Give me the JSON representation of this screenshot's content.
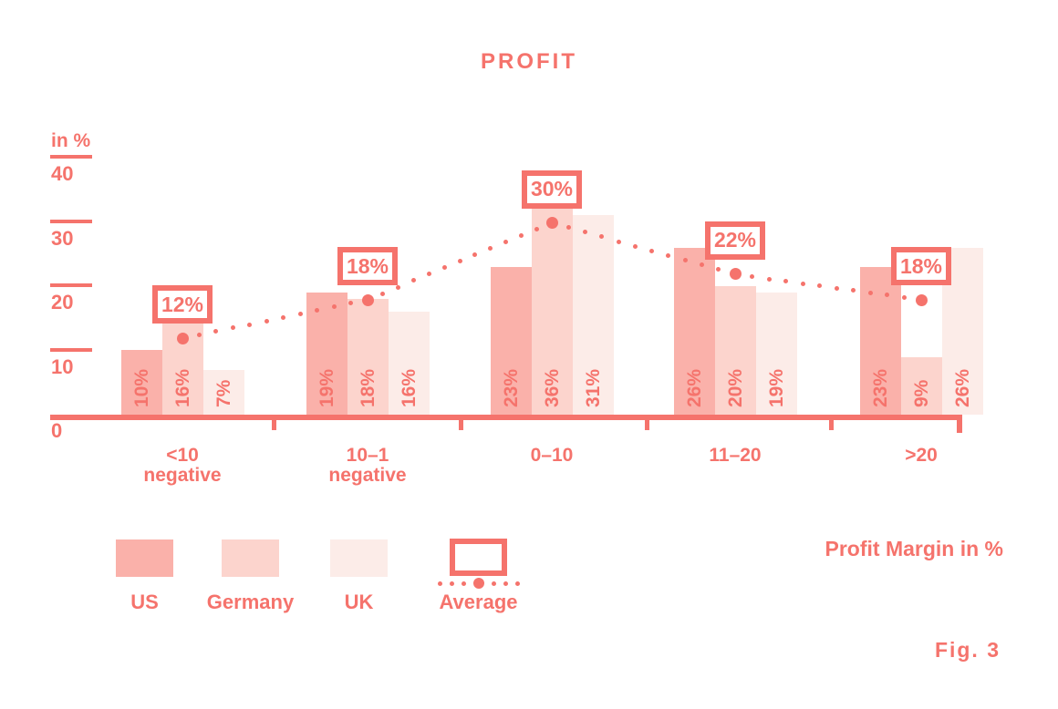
{
  "title": "PROFIT",
  "y_axis_unit": "in %",
  "x_axis_title": "Profit Margin in %",
  "figure_label": "Fig. 3",
  "colors": {
    "accent": "#F5736C",
    "us": "#FAB1AA",
    "germany": "#FCD4CD",
    "uk": "#FCECE8",
    "background": "#FFFFFF"
  },
  "legend": [
    {
      "name": "US",
      "type": "swatch",
      "color": "#FAB1AA"
    },
    {
      "name": "Germany",
      "type": "swatch",
      "color": "#FCD4CD"
    },
    {
      "name": "UK",
      "type": "swatch",
      "color": "#FCECE8"
    },
    {
      "name": "Average",
      "type": "outlined-box-with-dotted-line"
    }
  ],
  "chart_data": {
    "type": "bar",
    "title": "PROFIT",
    "xlabel": "Profit Margin in %",
    "ylabel": "in %",
    "ylim": [
      0,
      40
    ],
    "yticks": [
      40,
      30,
      20,
      10,
      0
    ],
    "grid": false,
    "legend_position": "bottom-left",
    "categories": [
      "<10 negative",
      "10–1 negative",
      "0–10",
      "11–20",
      ">20"
    ],
    "category_lines": [
      [
        "<10",
        "negative"
      ],
      [
        "10–1",
        "negative"
      ],
      [
        "0–10"
      ],
      [
        "11–20"
      ],
      [
        ">20"
      ]
    ],
    "series": [
      {
        "name": "US",
        "color": "#FAB1AA",
        "values": [
          10,
          19,
          23,
          26,
          23
        ],
        "labels": [
          "10%",
          "19%",
          "23%",
          "26%",
          "23%"
        ]
      },
      {
        "name": "Germany",
        "color": "#FCD4CD",
        "values": [
          16,
          18,
          36,
          20,
          9
        ],
        "labels": [
          "16%",
          "18%",
          "36%",
          "20%",
          "9%"
        ]
      },
      {
        "name": "UK",
        "color": "#FCECE8",
        "values": [
          7,
          16,
          31,
          19,
          26
        ],
        "labels": [
          "7%",
          "16%",
          "31%",
          "19%",
          "26%"
        ]
      }
    ],
    "average_line": {
      "name": "Average",
      "style": "dotted",
      "values": [
        12,
        18,
        30,
        22,
        18
      ],
      "labels": [
        "12%",
        "18%",
        "30%",
        "22%",
        "18%"
      ]
    }
  }
}
